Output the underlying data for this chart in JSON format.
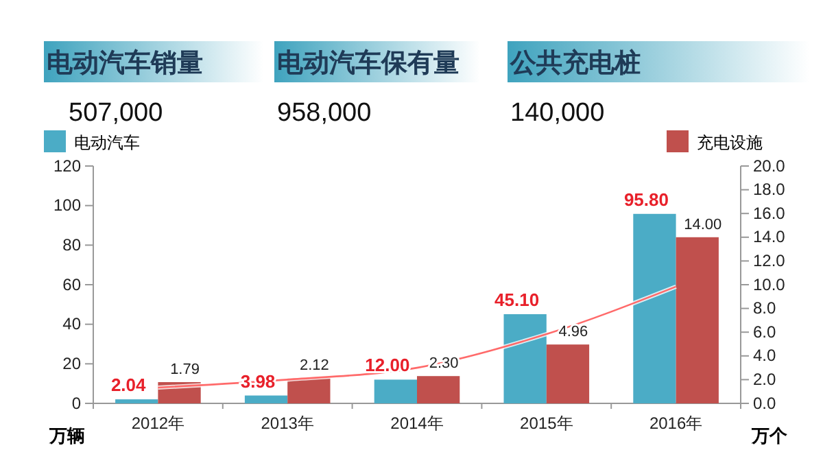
{
  "chart_data": {
    "type": "bar",
    "categories": [
      "2012年",
      "2013年",
      "2014年",
      "2015年",
      "2016年"
    ],
    "ylabel": "万辆",
    "y2label": "万个",
    "ylim": [
      0,
      120
    ],
    "yticks": [
      0,
      20,
      40,
      60,
      80,
      100,
      120
    ],
    "y2lim": [
      0,
      20
    ],
    "y2ticks": [
      {
        "value": 0,
        "label": "0.0"
      },
      {
        "value": 2,
        "label": "2.0"
      },
      {
        "value": 4,
        "label": "4.0"
      },
      {
        "value": 6,
        "label": "6.0"
      },
      {
        "value": 8,
        "label": "8.0"
      },
      {
        "value": 10,
        "label": "10.0"
      },
      {
        "value": 12,
        "label": "12.0"
      },
      {
        "value": 14,
        "label": "14.0"
      },
      {
        "value": 16,
        "label": "16.0"
      },
      {
        "value": 18,
        "label": "18.0"
      },
      {
        "value": 20,
        "label": "20.0"
      }
    ],
    "series": [
      {
        "name": "电动汽车",
        "color": "#4bacc6",
        "values": [
          2.04,
          3.98,
          12,
          45.1,
          95.8
        ],
        "value_labels": [
          "2.04",
          "3.98",
          "12.00",
          "45.10",
          "95.80"
        ]
      },
      {
        "name": "充电设施",
        "color": "#c0504d",
        "axis": "y2",
        "values": [
          1.79,
          2.12,
          2.3,
          4.96,
          14
        ],
        "value_labels": [
          "1.79",
          "2.12",
          "2.30",
          "4.96",
          "14.00"
        ]
      },
      {
        "type": "line",
        "color": "#ff6a6a",
        "values": [
          8,
          12,
          18,
          35,
          59
        ]
      }
    ],
    "legend": "top",
    "annotations": [
      "电动汽车销量",
      "507,000",
      "电动汽车保有量",
      "958,000",
      "公共充电桩",
      "140,000"
    ]
  }
}
